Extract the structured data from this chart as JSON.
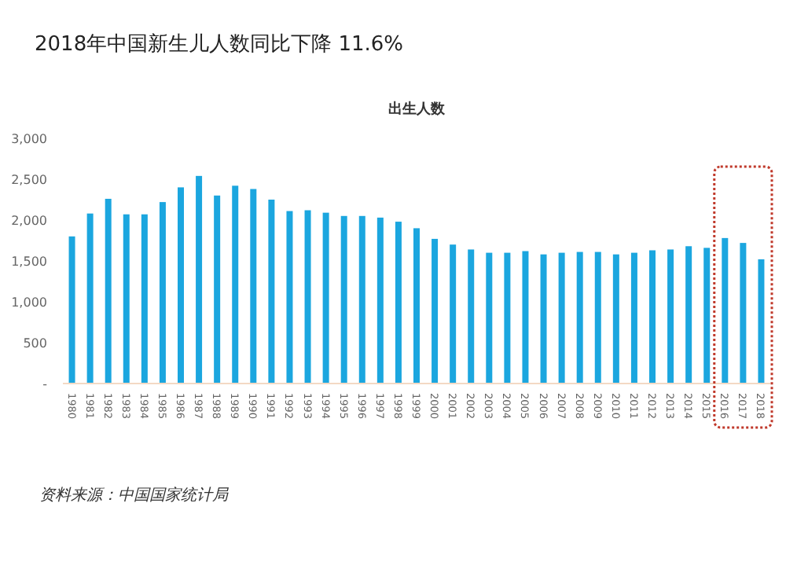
{
  "chart_data": {
    "type": "bar",
    "title": "2018年中国新生儿人数同比下降 11.6%",
    "subtitle": "出生人数",
    "annotations": [
      "资料来源：中国国家统计局"
    ],
    "categories": [
      "1980",
      "1981",
      "1982",
      "1983",
      "1984",
      "1985",
      "1986",
      "1987",
      "1988",
      "1989",
      "1990",
      "1991",
      "1992",
      "1993",
      "1994",
      "1995",
      "1996",
      "1997",
      "1998",
      "1999",
      "2000",
      "2001",
      "2002",
      "2003",
      "2004",
      "2005",
      "2006",
      "2007",
      "2008",
      "2009",
      "2010",
      "2011",
      "2012",
      "2013",
      "2014",
      "2015",
      "2016",
      "2017",
      "2018"
    ],
    "values": [
      1800,
      2080,
      2260,
      2070,
      2070,
      2220,
      2400,
      2540,
      2300,
      2420,
      2380,
      2250,
      2110,
      2120,
      2090,
      2050,
      2050,
      2030,
      1980,
      1900,
      1770,
      1700,
      1640,
      1600,
      1600,
      1620,
      1580,
      1600,
      1610,
      1610,
      1580,
      1600,
      1630,
      1640,
      1680,
      1660,
      1780,
      1720,
      1520
    ],
    "color": "#1ba6df",
    "ylim": [
      0,
      3000
    ],
    "yticks": [
      {
        "value": 0,
        "label": "-"
      },
      500,
      {
        "value": 1000,
        "label": "1,000"
      },
      {
        "value": 1500,
        "label": "1,500"
      },
      {
        "value": 2000,
        "label": "2,000"
      },
      {
        "value": 2500,
        "label": "2,500"
      },
      {
        "value": 3000,
        "label": "3,000"
      }
    ],
    "grid": false
  }
}
